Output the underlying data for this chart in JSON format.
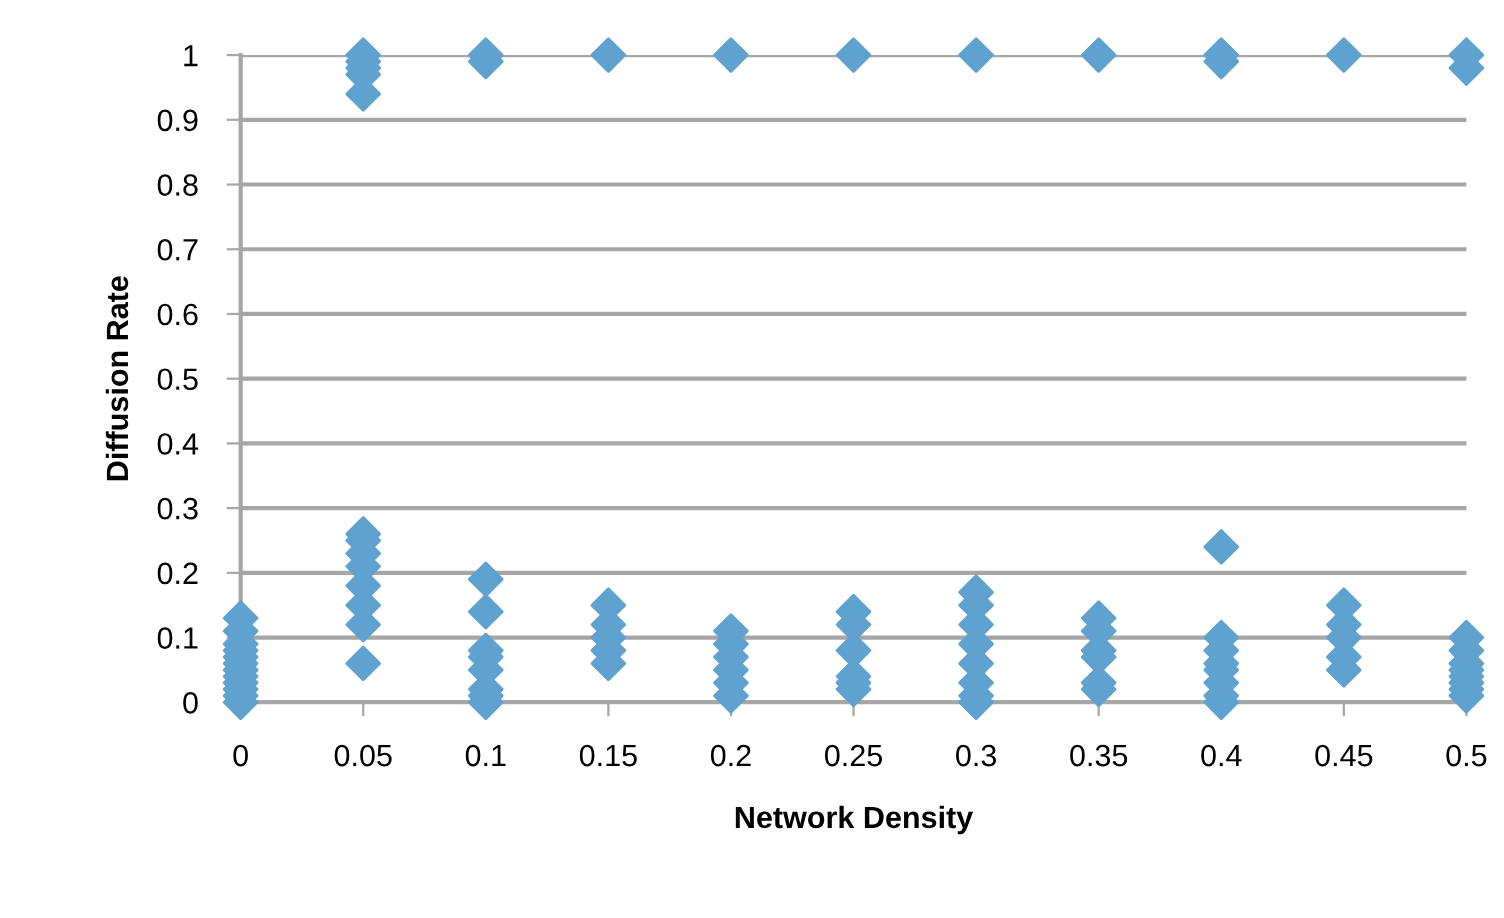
{
  "chart_data": {
    "type": "scatter",
    "xlabel": "Network Density",
    "ylabel": "Diffusion Rate",
    "marker": "diamond",
    "grid": "y",
    "xlim": [
      0,
      0.5
    ],
    "ylim": [
      0,
      1
    ],
    "xticks": [
      0,
      0.05,
      0.1,
      0.15,
      0.2,
      0.25,
      0.3,
      0.35,
      0.4,
      0.45,
      0.5
    ],
    "yticks": [
      0,
      0.1,
      0.2,
      0.3,
      0.4,
      0.5,
      0.6,
      0.7,
      0.8,
      0.9,
      1
    ],
    "series": [
      {
        "color": "#5fa2d0",
        "x": [
          0,
          0,
          0,
          0,
          0,
          0,
          0,
          0,
          0,
          0,
          0,
          0,
          0.05,
          0.05,
          0.05,
          0.05,
          0.05,
          0.05,
          0.05,
          0.05,
          0.05,
          0.05,
          0.05,
          0.05,
          0.05,
          0.1,
          0.1,
          0.1,
          0.1,
          0.1,
          0.1,
          0.1,
          0.1,
          0.1,
          0.1,
          0.15,
          0.15,
          0.15,
          0.15,
          0.15,
          0.15,
          0.2,
          0.2,
          0.2,
          0.2,
          0.2,
          0.2,
          0.2,
          0.25,
          0.25,
          0.25,
          0.25,
          0.25,
          0.25,
          0.25,
          0.3,
          0.3,
          0.3,
          0.3,
          0.3,
          0.3,
          0.3,
          0.3,
          0.3,
          0.35,
          0.35,
          0.35,
          0.35,
          0.35,
          0.35,
          0.35,
          0.4,
          0.4,
          0.4,
          0.4,
          0.4,
          0.4,
          0.4,
          0.4,
          0.4,
          0.4,
          0.45,
          0.45,
          0.45,
          0.45,
          0.45,
          0.45,
          0.5,
          0.5,
          0.5,
          0.5,
          0.5,
          0.5,
          0.5,
          0.5,
          0.5,
          0.5
        ],
        "values": [
          0.13,
          0.11,
          0.09,
          0.08,
          0.07,
          0.06,
          0.05,
          0.04,
          0.03,
          0.02,
          0.01,
          0,
          1,
          0.99,
          0.98,
          0.97,
          0.94,
          0.26,
          0.25,
          0.23,
          0.21,
          0.18,
          0.15,
          0.12,
          0.06,
          1,
          0.99,
          0.19,
          0.14,
          0.08,
          0.07,
          0.05,
          0.02,
          0.01,
          0,
          1,
          0.15,
          0.12,
          0.1,
          0.08,
          0.06,
          1,
          0.11,
          0.09,
          0.07,
          0.05,
          0.03,
          0.01,
          1,
          0.14,
          0.12,
          0.08,
          0.04,
          0.03,
          0.02,
          1,
          0.17,
          0.15,
          0.12,
          0.09,
          0.06,
          0.03,
          0.01,
          0,
          1,
          0.13,
          0.11,
          0.08,
          0.07,
          0.03,
          0.02,
          1,
          0.99,
          0.24,
          0.1,
          0.08,
          0.06,
          0.05,
          0.03,
          0.01,
          0,
          1,
          0.15,
          0.12,
          0.1,
          0.07,
          0.05,
          1,
          0.98,
          0.1,
          0.08,
          0.06,
          0.05,
          0.04,
          0.03,
          0.02,
          0.01
        ]
      }
    ]
  }
}
